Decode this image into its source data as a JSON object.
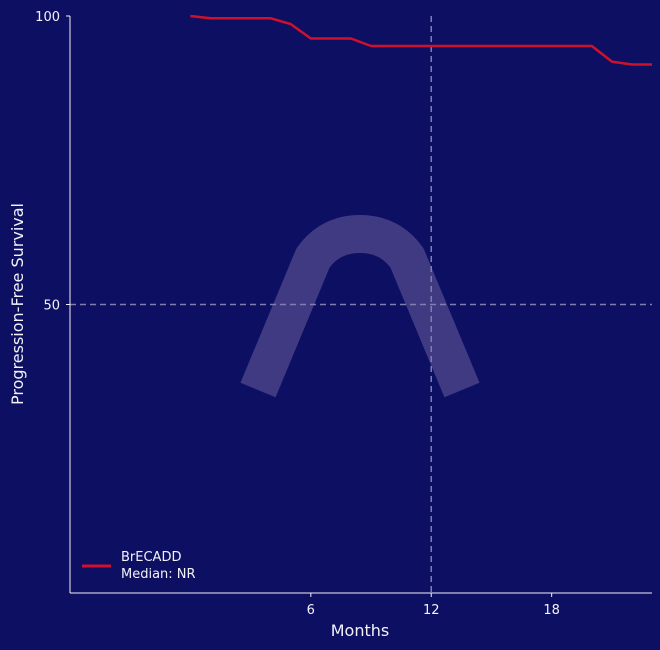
{
  "colors": {
    "background": "#0d0f63",
    "axis": "#f2f2f7",
    "curve": "#d0112b",
    "reference_line": "#7f7fb0",
    "watermark": "#6b5e9e"
  },
  "watermark_icon": "arch-logo",
  "chart_data": {
    "type": "line",
    "title": "",
    "xlabel": "Months",
    "ylabel": "Progression-Free Survival",
    "xlim": [
      -6,
      23
    ],
    "ylim": [
      0,
      100
    ],
    "x_ticks": [
      6,
      12,
      18
    ],
    "y_ticks": [
      50,
      100
    ],
    "reference_lines": {
      "x": 12,
      "y": 50
    },
    "grid": false,
    "legend_position": "bottom-left",
    "series": [
      {
        "name": "BrECADD",
        "legend_subtitle": "Median: NR",
        "step": false,
        "x": [
          0,
          1,
          2,
          3,
          4,
          5,
          6,
          7,
          8,
          9,
          10,
          11,
          12,
          13,
          14,
          15,
          16,
          17,
          18,
          19,
          20,
          21,
          22,
          23
        ],
        "y": [
          100,
          99.6,
          99.6,
          99.6,
          99.6,
          98.6,
          96.1,
          96.1,
          96.1,
          94.8,
          94.8,
          94.8,
          94.8,
          94.8,
          94.8,
          94.8,
          94.8,
          94.8,
          94.8,
          94.8,
          94.8,
          92.1,
          91.6,
          91.6
        ]
      }
    ]
  }
}
